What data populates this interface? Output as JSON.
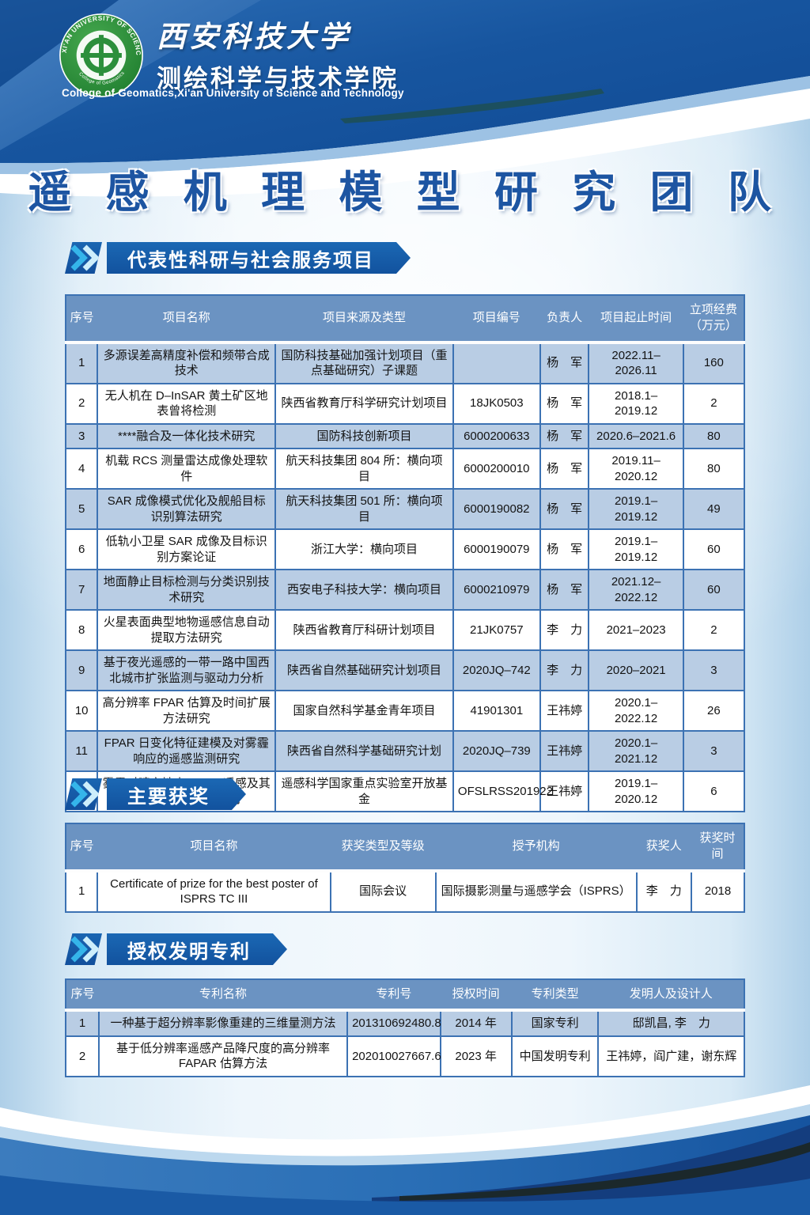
{
  "header": {
    "university_cn": "西安科技大学",
    "college_cn": "测绘科学与技术学院",
    "college_en": "College of  Geomatics,Xi'an University of Science and Technology",
    "logo_ring_top": "XI'AN UNIVERSITY OF SCIENCE & TECHNOLOGY",
    "logo_ring_bottom": "College of Geomatics"
  },
  "title": "遥 感 机 理 模 型 研 究 团 队",
  "colors": {
    "banner_blue": "#12529e",
    "table_header_bg": "#6b93c2",
    "row_alt_bg": "#b9cde4",
    "title_color": "#1d55a2",
    "chevron_cyan": "#35b5ea",
    "logo_green": "#2e9140"
  },
  "projects_section": {
    "banner": "代表性科研与社会服务项目",
    "table": {
      "headers": [
        "序号",
        "项目名称",
        "项目来源及类型",
        "项目编号",
        "负责人",
        "项目起止时间",
        "立项经费\n（万元）"
      ],
      "rows": [
        [
          "1",
          "多源误差高精度补偿和频带合成技术",
          "国防科技基础加强计划项目（重点基础研究）子课题",
          "",
          "杨　军",
          "2022.11–2026.11",
          "160"
        ],
        [
          "2",
          "无人机在 D–InSAR 黄土矿区地表曾将检测",
          "陕西省教育厅科学研究计划项目",
          "18JK0503",
          "杨　军",
          "2018.1–2019.12",
          "2"
        ],
        [
          "3",
          "****融合及一体化技术研究",
          "国防科技创新项目",
          "6000200633",
          "杨　军",
          "2020.6–2021.6",
          "80"
        ],
        [
          "4",
          "机载 RCS 测量雷达成像处理软件",
          "航天科技集团 804 所：横向项目",
          "6000200010",
          "杨　军",
          "2019.11–2020.12",
          "80"
        ],
        [
          "5",
          "SAR 成像模式优化及舰船目标识别算法研究",
          "航天科技集团 501 所：横向项目",
          "6000190082",
          "杨　军",
          "2019.1–2019.12",
          "49"
        ],
        [
          "6",
          "低轨小卫星 SAR 成像及目标识别方案论证",
          "浙江大学：横向项目",
          "6000190079",
          "杨　军",
          "2019.1–2019.12",
          "60"
        ],
        [
          "7",
          "地面静止目标检测与分类识别技术研究",
          "西安电子科技大学：横向项目",
          "6000210979",
          "杨　军",
          "2021.12–2022.12",
          "60"
        ],
        [
          "8",
          "火星表面典型地物遥感信息自动提取方法研究",
          "陕西省教育厅科研计划项目",
          "21JK0757",
          "李　力",
          "2021–2023",
          "2"
        ],
        [
          "9",
          "基于夜光遥感的一带一路中国西北城市扩张监测与驱动力分析",
          "陕西省自然基础研究计划项目",
          "2020JQ–742",
          "李　力",
          "2020–2021",
          "3"
        ],
        [
          "10",
          "高分辨率 FPAR 估算及时间扩展方法研究",
          "国家自然科学基金青年项目",
          "41901301",
          "王祎婷",
          "2020.1–2022.12",
          "26"
        ],
        [
          "11",
          "FPAR 日变化特征建模及对雾霾响应的遥感监测研究",
          "陕西省自然科学基础研究计划",
          "2020JQ–739",
          "王祎婷",
          "2020.1–2021.12",
          "3"
        ],
        [
          "12",
          "雾霾对晴空地表 FPAR 遥感及其时间扩展的影响研究",
          "遥感科学国家重点实验室开放基金",
          "OFSLRSS201922",
          "王祎婷",
          "2019.1–2020.12",
          "6"
        ]
      ]
    }
  },
  "awards_section": {
    "banner": "主要获奖",
    "table": {
      "headers": [
        "序号",
        "项目名称",
        "获奖类型及等级",
        "授予机构",
        "获奖人",
        "获奖时间"
      ],
      "rows": [
        [
          "1",
          "Certificate of prize for the best poster of ISPRS TC III",
          "国际会议",
          "国际摄影测量与遥感学会（ISPRS）",
          "李　力",
          "2018"
        ]
      ]
    }
  },
  "patents_section": {
    "banner": "授权发明专利",
    "table": {
      "headers": [
        "序号",
        "专利名称",
        "专利号",
        "授权时间",
        "专利类型",
        "发明人及设计人"
      ],
      "rows": [
        [
          "1",
          "一种基于超分辨率影像重建的三维量测方法",
          "201310692480.8",
          "2014 年",
          "国家专利",
          "邸凯昌, 李　力"
        ],
        [
          "2",
          "基于低分辨率遥感产品降尺度的高分辨率 FAPAR 估算方法",
          "202010027667.6",
          "2023 年",
          "中国发明专利",
          "王祎婷，阎广建，谢东辉"
        ]
      ]
    }
  }
}
